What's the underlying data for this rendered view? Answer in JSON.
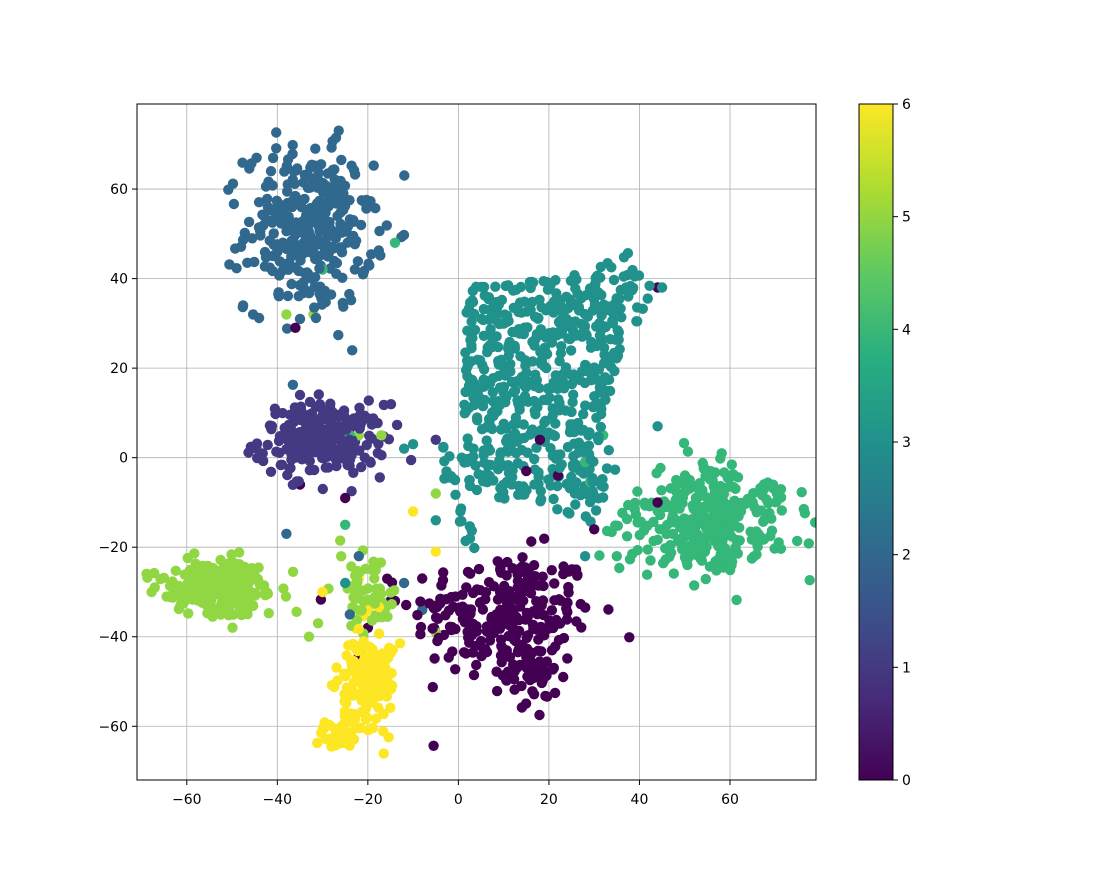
{
  "chart_data": {
    "type": "scatter",
    "title": "",
    "xlabel": "",
    "ylabel": "",
    "xlim": [
      -71,
      79
    ],
    "ylim": [
      -72,
      79
    ],
    "xticks": [
      -60,
      -40,
      -20,
      0,
      20,
      40,
      60
    ],
    "yticks": [
      -60,
      -40,
      -20,
      0,
      20,
      40,
      60
    ],
    "xtick_labels": [
      "−60",
      "−40",
      "−20",
      "0",
      "20",
      "40",
      "60"
    ],
    "ytick_labels": [
      "−60",
      "−40",
      "−20",
      "0",
      "20",
      "40",
      "60"
    ],
    "grid": true,
    "colormap": "viridis",
    "colorbar": {
      "range": [
        0,
        6
      ],
      "ticks": [
        0,
        1,
        2,
        3,
        4,
        5,
        6
      ],
      "tick_labels": [
        "0",
        "1",
        "2",
        "3",
        "4",
        "5",
        "6"
      ],
      "stops": [
        "#440154",
        "#472d7b",
        "#3b528b",
        "#2c728e",
        "#21918c",
        "#28ae80",
        "#5ec962",
        "#addc30",
        "#fde725"
      ]
    },
    "class_colors": [
      "#440154",
      "#443983",
      "#31688e",
      "#21918c",
      "#35b779",
      "#90d743",
      "#fde725"
    ],
    "clusters": [
      {
        "class": 0,
        "center": [
          10,
          -35
        ],
        "spread": [
          10,
          7
        ],
        "count": 240,
        "shape": "blob"
      },
      {
        "class": 0,
        "center": [
          16,
          -48
        ],
        "spread": [
          3,
          5
        ],
        "count": 50,
        "shape": "blob"
      },
      {
        "class": 1,
        "center": [
          -30,
          4
        ],
        "spread": [
          7,
          4
        ],
        "count": 230,
        "shape": "blob"
      },
      {
        "class": 2,
        "center": [
          -33,
          51
        ],
        "spread": [
          7,
          9
        ],
        "count": 330,
        "shape": "blob"
      },
      {
        "class": 3,
        "shape": "polygon",
        "polygon": [
          [
            -4,
            10
          ],
          [
            -4,
            -4
          ],
          [
            2,
            -12
          ],
          [
            5,
            -20
          ],
          [
            0,
            -22
          ],
          [
            2,
            38
          ],
          [
            22,
            40
          ],
          [
            38,
            46
          ],
          [
            43,
            38
          ],
          [
            40,
            30
          ],
          [
            35,
            22
          ],
          [
            33,
            8
          ],
          [
            35,
            -5
          ],
          [
            30,
            -15
          ],
          [
            18,
            -10
          ],
          [
            8,
            -10
          ],
          [
            0,
            -8
          ]
        ],
        "count": 620
      },
      {
        "class": 4,
        "center": [
          55,
          -14
        ],
        "spread": [
          9,
          6
        ],
        "count": 330,
        "shape": "blob"
      },
      {
        "class": 5,
        "center": [
          -53,
          -29
        ],
        "spread": [
          6,
          3
        ],
        "count": 230,
        "shape": "blob"
      },
      {
        "class": 5,
        "center": [
          -20,
          -30
        ],
        "spread": [
          3,
          4
        ],
        "count": 60,
        "shape": "blob"
      },
      {
        "class": 6,
        "center": [
          -20,
          -50
        ],
        "spread": [
          3,
          6
        ],
        "count": 160,
        "shape": "blob"
      },
      {
        "class": 6,
        "center": [
          -26,
          -62
        ],
        "spread": [
          2,
          1.5
        ],
        "count": 35,
        "shape": "blob"
      }
    ],
    "outliers": [
      {
        "class": 0,
        "points": [
          [
            -25,
            -9
          ],
          [
            -35,
            -6
          ],
          [
            -30,
            4
          ],
          [
            -15,
            -32
          ],
          [
            -20,
            -38
          ],
          [
            -8,
            -27
          ],
          [
            44,
            38
          ],
          [
            44,
            -10
          ],
          [
            26,
            -25
          ],
          [
            30,
            -16
          ],
          [
            22,
            -4
          ],
          [
            15,
            -3
          ],
          [
            18,
            4
          ],
          [
            -36,
            29
          ],
          [
            -14,
            -32
          ],
          [
            -22,
            -44
          ]
        ]
      },
      {
        "class": 1,
        "points": [
          [
            -5,
            4
          ],
          [
            -35,
            14
          ],
          [
            -28,
            10
          ]
        ]
      },
      {
        "class": 2,
        "points": [
          [
            -8,
            -34
          ],
          [
            -22,
            -22
          ],
          [
            -38,
            -17
          ],
          [
            -24,
            -35
          ],
          [
            -12,
            -28
          ],
          [
            -35,
            31
          ]
        ]
      },
      {
        "class": 3,
        "points": [
          [
            -10,
            3
          ],
          [
            -12,
            2
          ],
          [
            -5,
            -14
          ],
          [
            -25,
            -28
          ],
          [
            44,
            7
          ],
          [
            45,
            38
          ],
          [
            28,
            -22
          ]
        ]
      },
      {
        "class": 4,
        "points": [
          [
            -30,
            42
          ],
          [
            -24,
            5
          ],
          [
            -25,
            -15
          ],
          [
            35,
            -22
          ],
          [
            -14,
            48
          ],
          [
            32,
            5
          ],
          [
            28,
            -1
          ]
        ]
      },
      {
        "class": 5,
        "points": [
          [
            -33,
            -40
          ],
          [
            -31,
            -37
          ],
          [
            -30,
            -30
          ],
          [
            -22,
            5
          ],
          [
            -17,
            5
          ],
          [
            -5,
            -8
          ],
          [
            -5,
            -39
          ],
          [
            -32,
            32
          ],
          [
            -38,
            32
          ]
        ]
      },
      {
        "class": 6,
        "points": [
          [
            -5,
            -21
          ],
          [
            -10,
            -12
          ],
          [
            -30,
            -30
          ],
          [
            -22,
            -27
          ],
          [
            -20,
            -34
          ]
        ]
      }
    ]
  }
}
